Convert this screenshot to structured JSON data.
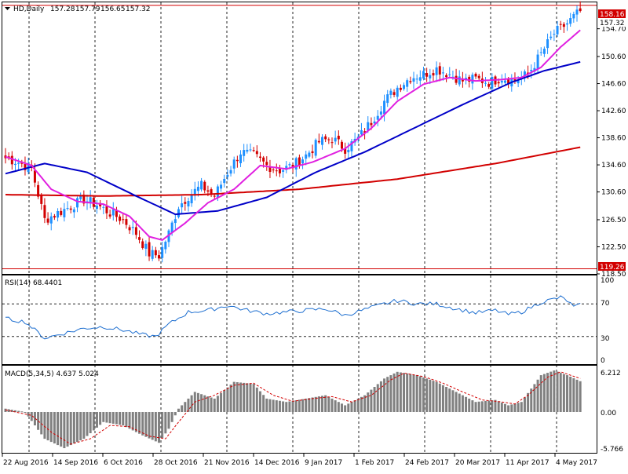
{
  "header": {
    "symbol": "HD,Daily",
    "open": "157.28",
    "high": "157.79",
    "low": "156.65",
    "close": "157.32"
  },
  "colors": {
    "up": "#1e90ff",
    "down": "#d20000",
    "sma_slow": "#d20000",
    "sma_mid": "#0000c8",
    "sma_fast": "#e020e0",
    "rsi_line": "#1e6fd0",
    "macd_hist": "#808080",
    "macd_signal": "#d20000",
    "hline": "#d20000",
    "price_tag_bg": "#d20000",
    "price_tag_fg": "#ffffff"
  },
  "price_axis": {
    "ticks": [
      "154.70",
      "150.60",
      "146.60",
      "142.60",
      "138.60",
      "134.60",
      "130.60",
      "126.50",
      "122.50",
      "118.50"
    ],
    "high_tag": "158.16",
    "last_tag": "157.32",
    "low_tag": "119.26"
  },
  "rsi": {
    "label": "RSI(14) 68.4401",
    "ticks": [
      "100",
      "70",
      "30",
      "0"
    ]
  },
  "macd": {
    "label": "MACD(5,34,5) 4.637 5.024",
    "ticks": [
      "6.212",
      "0.00",
      "-5.766"
    ]
  },
  "x_axis": {
    "labels": [
      "22 Aug 2016",
      "14 Sep 2016",
      "6 Oct 2016",
      "28 Oct 2016",
      "21 Nov 2016",
      "14 Dec 2016",
      "9 Jan 2017",
      "1 Feb 2017",
      "24 Feb 2017",
      "20 Mar 2017",
      "11 Apr 2017",
      "4 May 2017"
    ]
  },
  "chart_data": {
    "type": "candlestick",
    "title": "HD,Daily",
    "price_range": [
      118.5,
      158.6
    ],
    "hlines": [
      158.16,
      119.26
    ],
    "anchors_close": [
      [
        0,
        135.6
      ],
      [
        4,
        135.0
      ],
      [
        8,
        134.0
      ],
      [
        12,
        126.5
      ],
      [
        16,
        127.5
      ],
      [
        20,
        128.5
      ],
      [
        24,
        129.5
      ],
      [
        28,
        128.7
      ],
      [
        32,
        127.5
      ],
      [
        36,
        126.5
      ],
      [
        40,
        124.5
      ],
      [
        44,
        121.5
      ],
      [
        47,
        121.2
      ],
      [
        50,
        124.5
      ],
      [
        53,
        128.5
      ],
      [
        56,
        130.0
      ],
      [
        60,
        131.5
      ],
      [
        64,
        130.0
      ],
      [
        68,
        133.5
      ],
      [
        72,
        136.5
      ],
      [
        76,
        136.0
      ],
      [
        80,
        134.5
      ],
      [
        84,
        133.8
      ],
      [
        88,
        134.5
      ],
      [
        92,
        136.0
      ],
      [
        96,
        138.0
      ],
      [
        100,
        138.5
      ],
      [
        104,
        137.0
      ],
      [
        108,
        138.5
      ],
      [
        112,
        141.0
      ],
      [
        116,
        144.0
      ],
      [
        120,
        146.0
      ],
      [
        124,
        147.5
      ],
      [
        128,
        148.0
      ],
      [
        132,
        148.8
      ],
      [
        136,
        148.0
      ],
      [
        140,
        147.0
      ],
      [
        144,
        147.3
      ],
      [
        148,
        146.8
      ],
      [
        152,
        147.5
      ],
      [
        156,
        147.0
      ],
      [
        160,
        148.0
      ],
      [
        164,
        151.0
      ],
      [
        168,
        154.0
      ],
      [
        172,
        155.5
      ],
      [
        176,
        157.32
      ]
    ],
    "ma_anchors": {
      "sma_slow": [
        [
          0,
          130.2
        ],
        [
          30,
          130.0
        ],
        [
          60,
          130.2
        ],
        [
          90,
          131.0
        ],
        [
          120,
          132.5
        ],
        [
          150,
          134.8
        ],
        [
          176,
          137.2
        ]
      ],
      "sma_mid": [
        [
          0,
          133.3
        ],
        [
          12,
          134.8
        ],
        [
          25,
          133.5
        ],
        [
          40,
          130.0
        ],
        [
          52,
          127.3
        ],
        [
          65,
          127.8
        ],
        [
          80,
          129.8
        ],
        [
          95,
          133.5
        ],
        [
          110,
          136.5
        ],
        [
          125,
          140.0
        ],
        [
          140,
          143.5
        ],
        [
          155,
          146.8
        ],
        [
          165,
          148.5
        ],
        [
          176,
          149.8
        ]
      ],
      "sma_fast": [
        [
          0,
          135.8
        ],
        [
          8,
          134.5
        ],
        [
          14,
          131.0
        ],
        [
          22,
          129.2
        ],
        [
          30,
          128.8
        ],
        [
          38,
          127.0
        ],
        [
          44,
          124.0
        ],
        [
          48,
          123.5
        ],
        [
          55,
          126.0
        ],
        [
          62,
          129.0
        ],
        [
          70,
          131.0
        ],
        [
          78,
          134.5
        ],
        [
          86,
          134.0
        ],
        [
          94,
          135.0
        ],
        [
          104,
          137.0
        ],
        [
          112,
          140.0
        ],
        [
          120,
          144.0
        ],
        [
          128,
          146.5
        ],
        [
          136,
          147.5
        ],
        [
          144,
          147.0
        ],
        [
          152,
          147.2
        ],
        [
          158,
          147.5
        ],
        [
          164,
          149.0
        ],
        [
          170,
          152.0
        ],
        [
          176,
          154.5
        ]
      ]
    },
    "rsi_anchors": [
      [
        0,
        52
      ],
      [
        6,
        48
      ],
      [
        12,
        28
      ],
      [
        18,
        34
      ],
      [
        24,
        40
      ],
      [
        30,
        42
      ],
      [
        36,
        38
      ],
      [
        42,
        32
      ],
      [
        46,
        30
      ],
      [
        50,
        45
      ],
      [
        56,
        60
      ],
      [
        62,
        62
      ],
      [
        68,
        68
      ],
      [
        74,
        62
      ],
      [
        80,
        58
      ],
      [
        86,
        60
      ],
      [
        92,
        62
      ],
      [
        98,
        64
      ],
      [
        104,
        56
      ],
      [
        110,
        63
      ],
      [
        116,
        70
      ],
      [
        120,
        74
      ],
      [
        126,
        70
      ],
      [
        132,
        70
      ],
      [
        138,
        64
      ],
      [
        144,
        59
      ],
      [
        150,
        62
      ],
      [
        154,
        57
      ],
      [
        158,
        60
      ],
      [
        164,
        72
      ],
      [
        168,
        76
      ],
      [
        170,
        78
      ],
      [
        172,
        74
      ],
      [
        174,
        66
      ],
      [
        176,
        68.4
      ]
    ],
    "macd_anchors": [
      [
        0,
        0.5
      ],
      [
        6,
        0
      ],
      [
        12,
        -4.0
      ],
      [
        18,
        -5.4
      ],
      [
        24,
        -4.0
      ],
      [
        30,
        -1.5
      ],
      [
        36,
        -2.0
      ],
      [
        42,
        -3.5
      ],
      [
        47,
        -4.6
      ],
      [
        50,
        -2.5
      ],
      [
        53,
        0.5
      ],
      [
        58,
        3.0
      ],
      [
        64,
        2.0
      ],
      [
        70,
        4.5
      ],
      [
        76,
        4.2
      ],
      [
        80,
        2.0
      ],
      [
        86,
        1.5
      ],
      [
        92,
        2.0
      ],
      [
        98,
        2.5
      ],
      [
        104,
        1.0
      ],
      [
        110,
        2.5
      ],
      [
        116,
        5.0
      ],
      [
        120,
        6.0
      ],
      [
        126,
        5.5
      ],
      [
        132,
        4.5
      ],
      [
        138,
        3.0
      ],
      [
        144,
        1.5
      ],
      [
        150,
        1.8
      ],
      [
        154,
        1.0
      ],
      [
        158,
        1.5
      ],
      [
        164,
        5.5
      ],
      [
        168,
        6.2
      ],
      [
        172,
        5.5
      ],
      [
        176,
        4.6
      ]
    ],
    "macd_signal_anchors": [
      [
        0,
        0.3
      ],
      [
        8,
        -0.5
      ],
      [
        14,
        -3.0
      ],
      [
        20,
        -4.8
      ],
      [
        26,
        -4.0
      ],
      [
        32,
        -2.0
      ],
      [
        38,
        -2.2
      ],
      [
        44,
        -3.6
      ],
      [
        49,
        -4.0
      ],
      [
        53,
        -1.5
      ],
      [
        58,
        1.5
      ],
      [
        64,
        2.5
      ],
      [
        70,
        4.0
      ],
      [
        76,
        4.3
      ],
      [
        82,
        2.5
      ],
      [
        88,
        1.6
      ],
      [
        94,
        2.0
      ],
      [
        100,
        2.3
      ],
      [
        106,
        1.5
      ],
      [
        112,
        2.5
      ],
      [
        118,
        4.8
      ],
      [
        122,
        5.8
      ],
      [
        128,
        5.3
      ],
      [
        134,
        4.3
      ],
      [
        140,
        3.0
      ],
      [
        146,
        1.8
      ],
      [
        152,
        1.5
      ],
      [
        156,
        1.2
      ],
      [
        160,
        2.5
      ],
      [
        166,
        5.2
      ],
      [
        170,
        6.0
      ],
      [
        176,
        5.0
      ]
    ]
  }
}
